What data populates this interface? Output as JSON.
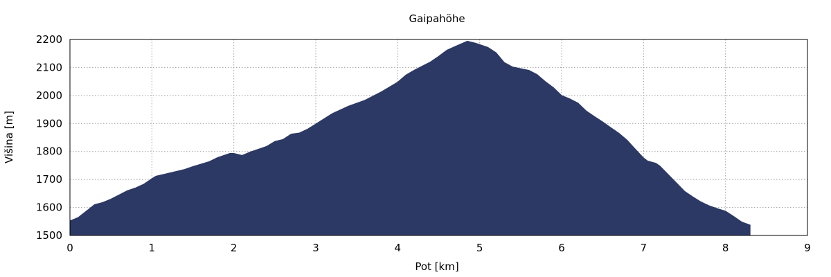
{
  "chart_data": {
    "type": "area",
    "title": "Gaipahöhe",
    "xlabel": "Pot [km]",
    "ylabel": "Višina [m]",
    "xlim": [
      0,
      9
    ],
    "ylim": [
      1500,
      2200
    ],
    "xticks": [
      "0",
      "1",
      "2",
      "3",
      "4",
      "5",
      "6",
      "7",
      "8",
      "9"
    ],
    "yticks": [
      "1500",
      "1600",
      "1700",
      "1800",
      "1900",
      "2000",
      "2100",
      "2200"
    ],
    "grid": true,
    "fill_color": "#2c3964",
    "x": [
      0,
      0.1,
      0.2,
      0.3,
      0.4,
      0.5,
      0.6,
      0.7,
      0.8,
      0.9,
      1.0,
      1.05,
      1.2,
      1.4,
      1.5,
      1.7,
      1.8,
      1.95,
      2.0,
      2.1,
      2.2,
      2.4,
      2.5,
      2.6,
      2.7,
      2.8,
      2.9,
      3.0,
      3.2,
      3.4,
      3.6,
      3.8,
      4.0,
      4.1,
      4.2,
      4.4,
      4.5,
      4.6,
      4.7,
      4.85,
      4.95,
      5.0,
      5.1,
      5.2,
      5.3,
      5.4,
      5.6,
      5.7,
      5.8,
      5.9,
      6.0,
      6.1,
      6.2,
      6.3,
      6.4,
      6.5,
      6.6,
      6.7,
      6.8,
      6.9,
      7.0,
      7.05,
      7.15,
      7.2,
      7.3,
      7.4,
      7.5,
      7.6,
      7.7,
      7.8,
      7.9,
      8.0,
      8.1,
      8.2,
      8.3
    ],
    "values": [
      1552,
      1564,
      1587,
      1610,
      1618,
      1630,
      1645,
      1660,
      1670,
      1683,
      1703,
      1712,
      1722,
      1736,
      1746,
      1764,
      1778,
      1793,
      1793,
      1786,
      1798,
      1818,
      1836,
      1843,
      1862,
      1866,
      1880,
      1898,
      1935,
      1962,
      1983,
      2013,
      2048,
      2073,
      2090,
      2120,
      2140,
      2162,
      2175,
      2194,
      2187,
      2182,
      2172,
      2153,
      2118,
      2102,
      2090,
      2075,
      2050,
      2028,
      2000,
      1988,
      1973,
      1945,
      1925,
      1906,
      1885,
      1865,
      1840,
      1808,
      1777,
      1766,
      1758,
      1748,
      1718,
      1688,
      1658,
      1638,
      1620,
      1606,
      1596,
      1587,
      1568,
      1548,
      1537
    ]
  }
}
